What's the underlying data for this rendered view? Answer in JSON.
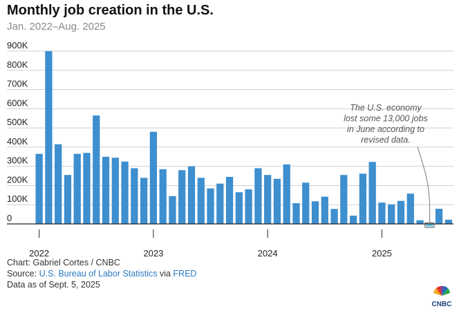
{
  "header": {
    "title": "Monthly job creation in the U.S.",
    "subtitle": "Jan. 2022–Aug. 2025"
  },
  "footer": {
    "chart_credit": "Chart: Gabriel Cortes / CNBC",
    "source_prefix": "Source: ",
    "source_bls": "U.S. Bureau of Labor Statistics",
    "source_via": " via ",
    "source_fred": "FRED",
    "data_as_of": "Data as of Sept. 5, 2025"
  },
  "logo": {
    "text": "CNBC",
    "icon": "peacock-logo-icon"
  },
  "colors": {
    "bar": "#3d8fcf",
    "highlight_bar": "#5ec6e8",
    "grid": "#cfcfcf",
    "link": "#2a78c2"
  },
  "chart_data": {
    "type": "bar",
    "title": "Monthly job creation in the U.S.",
    "subtitle": "Jan. 2022–Aug. 2025",
    "xlabel": "",
    "ylabel": "",
    "ylim": [
      -13000,
      900000
    ],
    "y_ticks": [
      0,
      100000,
      200000,
      300000,
      400000,
      500000,
      600000,
      700000,
      800000,
      900000
    ],
    "y_tick_labels": [
      "0",
      "100K",
      "200K",
      "300K",
      "400K",
      "500K",
      "600K",
      "700K",
      "800K",
      "900K"
    ],
    "x_tick_labels": [
      {
        "label": "2022",
        "index": 0
      },
      {
        "label": "2023",
        "index": 12
      },
      {
        "label": "2024",
        "index": 24
      },
      {
        "label": "2025",
        "index": 36
      }
    ],
    "grid": true,
    "categories": [
      "2022-01",
      "2022-02",
      "2022-03",
      "2022-04",
      "2022-05",
      "2022-06",
      "2022-07",
      "2022-08",
      "2022-09",
      "2022-10",
      "2022-11",
      "2022-12",
      "2023-01",
      "2023-02",
      "2023-03",
      "2023-04",
      "2023-05",
      "2023-06",
      "2023-07",
      "2023-08",
      "2023-09",
      "2023-10",
      "2023-11",
      "2023-12",
      "2024-01",
      "2024-02",
      "2024-03",
      "2024-04",
      "2024-05",
      "2024-06",
      "2024-07",
      "2024-08",
      "2024-09",
      "2024-10",
      "2024-11",
      "2024-12",
      "2025-01",
      "2025-02",
      "2025-03",
      "2025-04",
      "2025-05",
      "2025-06",
      "2025-07",
      "2025-08"
    ],
    "values": [
      365000,
      900000,
      415000,
      255000,
      365000,
      370000,
      565000,
      350000,
      345000,
      325000,
      290000,
      240000,
      480000,
      285000,
      145000,
      280000,
      300000,
      240000,
      185000,
      210000,
      245000,
      165000,
      180000,
      290000,
      255000,
      235000,
      310000,
      108000,
      215000,
      118000,
      142000,
      78000,
      255000,
      43000,
      262000,
      323000,
      111000,
      102000,
      120000,
      158000,
      19000,
      -13000,
      79000,
      22000
    ],
    "highlight_index": 41,
    "annotation": {
      "lines": [
        "The U.S. economy",
        "lost some 13,000 jobs",
        "in June according to",
        "revised data."
      ]
    }
  }
}
